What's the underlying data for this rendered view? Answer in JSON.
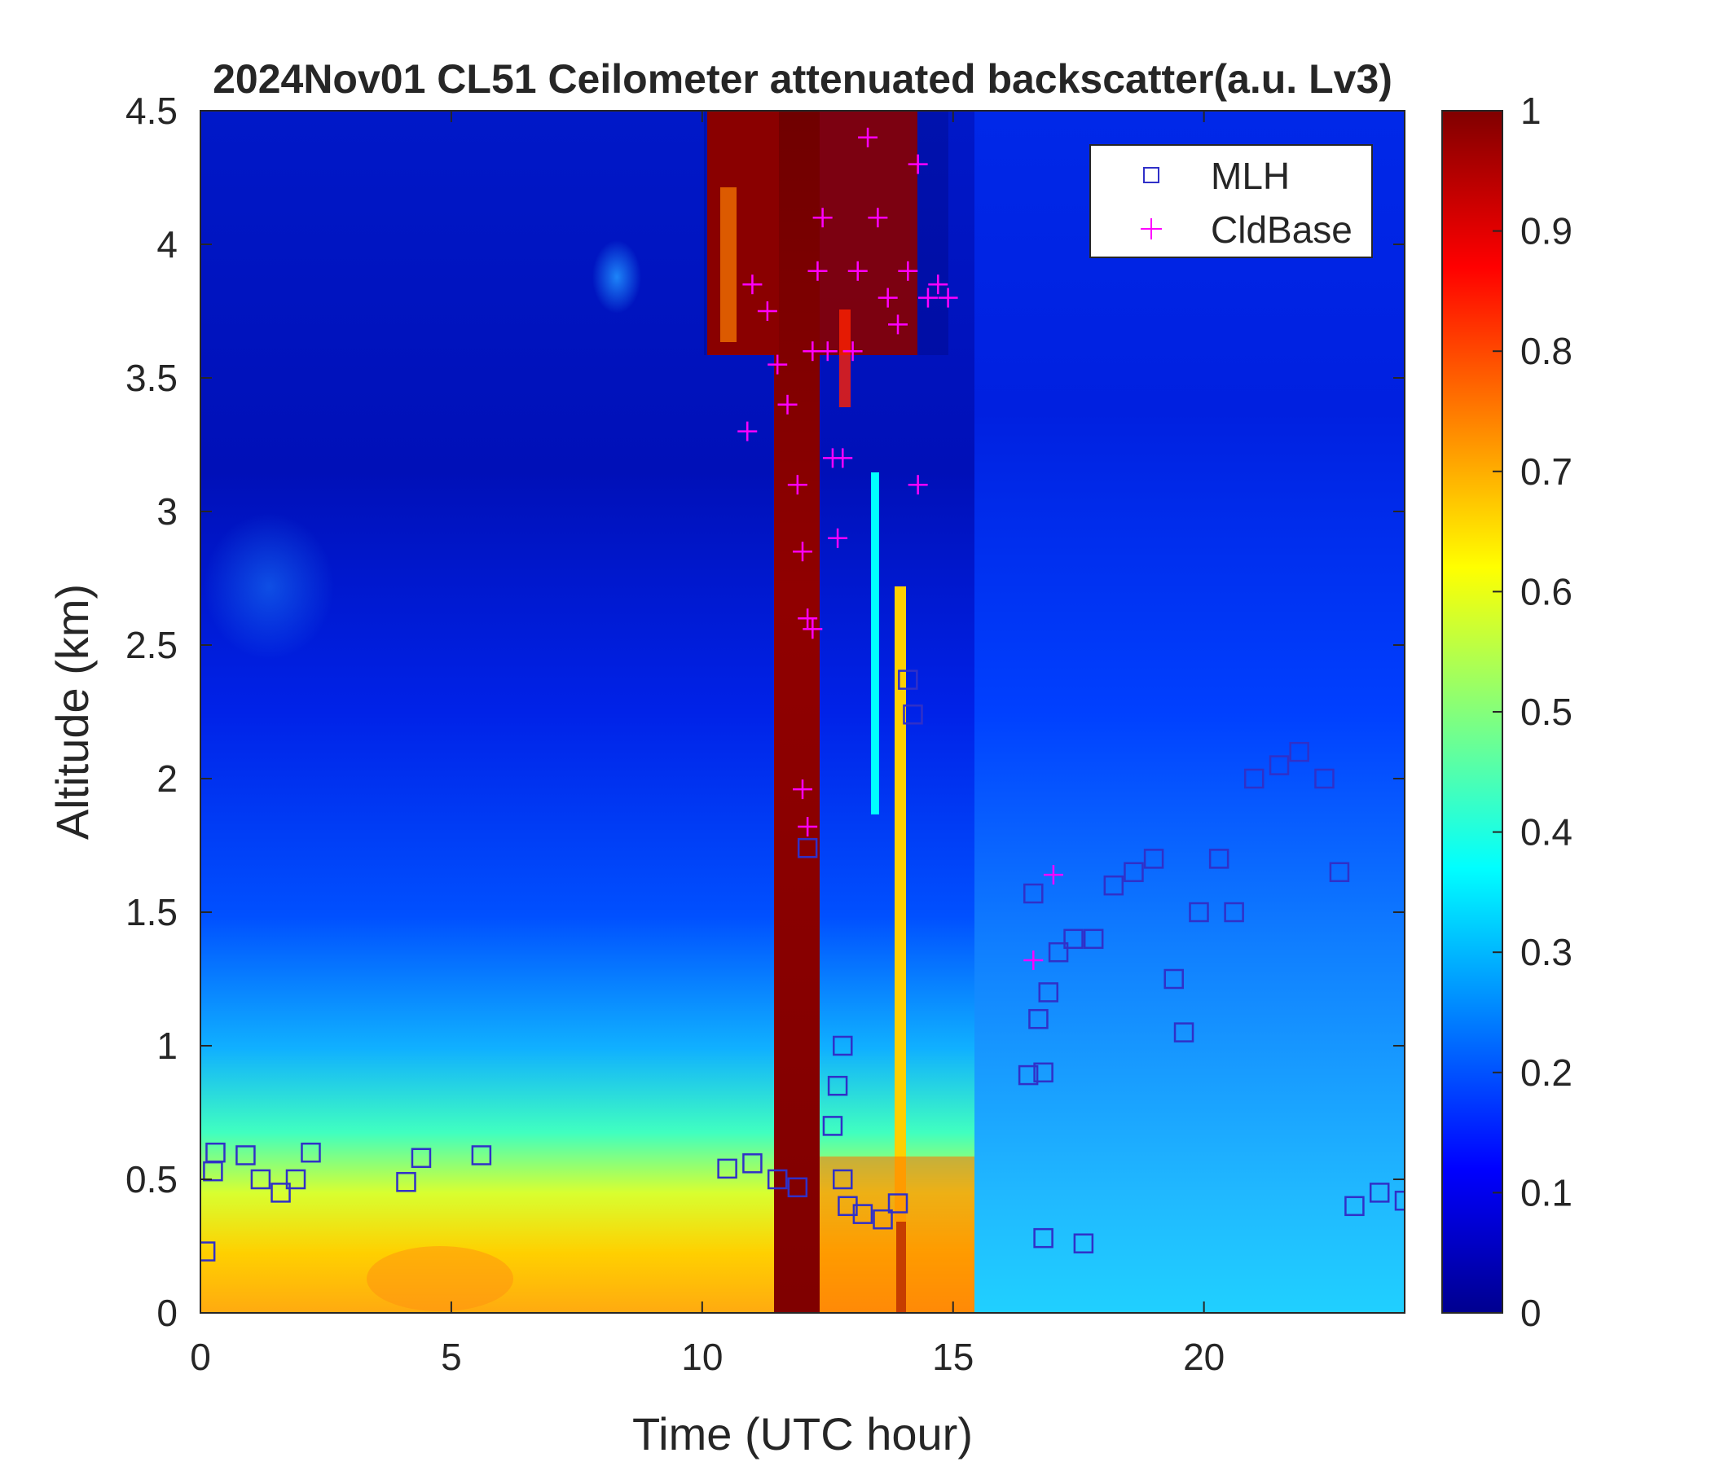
{
  "chart_data": {
    "type": "heatmap",
    "title": "2024Nov01 CL51 Ceilometer attenuated backscatter(a.u. Lv3)",
    "xlabel": "Time (UTC hour)",
    "ylabel": "Altitude (km)",
    "xlim": [
      0,
      24
    ],
    "ylim": [
      0,
      4.5
    ],
    "xticks": [
      "0",
      "5",
      "10",
      "15",
      "20"
    ],
    "yticks": [
      "0",
      "0.5",
      "1",
      "1.5",
      "2",
      "2.5",
      "3",
      "3.5",
      "4",
      "4.5"
    ],
    "colorbar": {
      "range": [
        0,
        1
      ],
      "ticks": [
        "0",
        "0.1",
        "0.2",
        "0.3",
        "0.4",
        "0.5",
        "0.6",
        "0.7",
        "0.8",
        "0.9",
        "1"
      ],
      "colormap": [
        "#00008f",
        "#0000ff",
        "#00ffff",
        "#ffff00",
        "#ff0000",
        "#800000"
      ]
    },
    "legend": {
      "placement": "top-right",
      "entries": [
        {
          "label": "MLH",
          "marker": "square",
          "color": "#3030c8"
        },
        {
          "label": "CldBase",
          "marker": "plus",
          "color": "#ff00ff"
        }
      ]
    },
    "series": [
      {
        "name": "MLH",
        "marker": "square",
        "points": [
          [
            0.1,
            0.23
          ],
          [
            0.3,
            0.6
          ],
          [
            0.25,
            0.53
          ],
          [
            0.9,
            0.59
          ],
          [
            1.2,
            0.5
          ],
          [
            1.6,
            0.45
          ],
          [
            1.9,
            0.5
          ],
          [
            2.2,
            0.6
          ],
          [
            4.1,
            0.49
          ],
          [
            4.4,
            0.58
          ],
          [
            5.6,
            0.59
          ],
          [
            10.5,
            0.54
          ],
          [
            11.0,
            0.56
          ],
          [
            11.5,
            0.5
          ],
          [
            11.9,
            0.47
          ],
          [
            12.1,
            1.74
          ],
          [
            12.6,
            0.7
          ],
          [
            12.7,
            0.85
          ],
          [
            12.8,
            1.0
          ],
          [
            12.8,
            0.5
          ],
          [
            12.9,
            0.4
          ],
          [
            13.2,
            0.37
          ],
          [
            13.6,
            0.35
          ],
          [
            13.9,
            0.41
          ],
          [
            14.1,
            2.37
          ],
          [
            14.2,
            2.24
          ],
          [
            16.6,
            1.57
          ],
          [
            16.5,
            0.89
          ],
          [
            16.7,
            1.1
          ],
          [
            16.8,
            0.9
          ],
          [
            16.9,
            1.2
          ],
          [
            17.1,
            1.35
          ],
          [
            17.4,
            1.4
          ],
          [
            17.8,
            1.4
          ],
          [
            18.2,
            1.6
          ],
          [
            18.6,
            1.65
          ],
          [
            19.0,
            1.7
          ],
          [
            19.4,
            1.25
          ],
          [
            19.6,
            1.05
          ],
          [
            19.9,
            1.5
          ],
          [
            20.3,
            1.7
          ],
          [
            20.6,
            1.5
          ],
          [
            21.0,
            2.0
          ],
          [
            21.5,
            2.05
          ],
          [
            21.9,
            2.1
          ],
          [
            22.4,
            2.0
          ],
          [
            22.7,
            1.65
          ],
          [
            16.8,
            0.28
          ],
          [
            17.6,
            0.26
          ],
          [
            23.0,
            0.4
          ],
          [
            23.5,
            0.45
          ],
          [
            24.0,
            0.42
          ]
        ]
      },
      {
        "name": "CldBase",
        "marker": "plus",
        "points": [
          [
            10.9,
            3.3
          ],
          [
            11.0,
            3.85
          ],
          [
            11.3,
            3.75
          ],
          [
            11.5,
            3.55
          ],
          [
            11.7,
            3.4
          ],
          [
            11.9,
            3.1
          ],
          [
            12.0,
            2.85
          ],
          [
            12.1,
            2.6
          ],
          [
            12.2,
            2.56
          ],
          [
            12.0,
            1.96
          ],
          [
            12.1,
            1.82
          ],
          [
            12.2,
            3.6
          ],
          [
            12.3,
            3.9
          ],
          [
            12.4,
            4.1
          ],
          [
            12.5,
            3.6
          ],
          [
            12.6,
            3.2
          ],
          [
            12.7,
            2.9
          ],
          [
            12.8,
            3.2
          ],
          [
            13.0,
            3.6
          ],
          [
            13.1,
            3.9
          ],
          [
            13.3,
            4.4
          ],
          [
            13.5,
            4.1
          ],
          [
            13.7,
            3.8
          ],
          [
            13.9,
            3.7
          ],
          [
            14.1,
            3.9
          ],
          [
            14.3,
            4.3
          ],
          [
            14.5,
            3.8
          ],
          [
            14.7,
            3.85
          ],
          [
            14.9,
            3.8
          ],
          [
            14.3,
            3.1
          ],
          [
            16.6,
            1.32
          ],
          [
            17.0,
            1.64
          ]
        ]
      }
    ]
  }
}
